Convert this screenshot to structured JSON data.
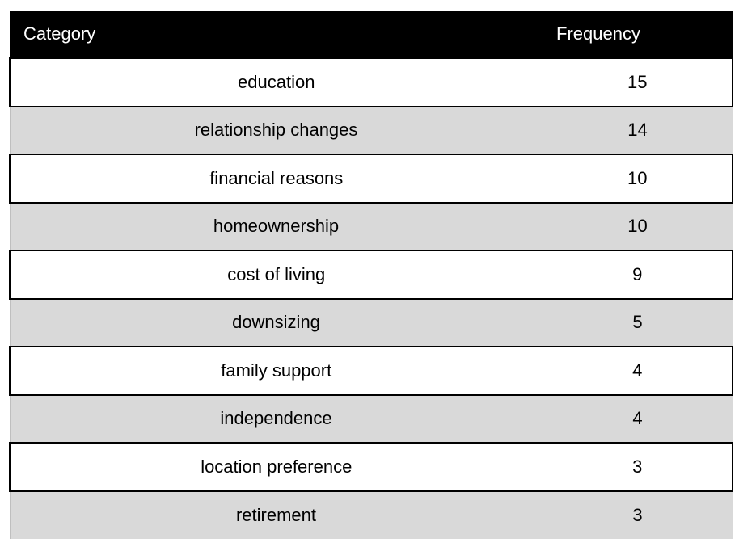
{
  "table": {
    "headers": {
      "category": "Category",
      "frequency": "Frequency"
    },
    "rows": [
      {
        "category": "education",
        "frequency": "15"
      },
      {
        "category": "relationship changes",
        "frequency": "14"
      },
      {
        "category": "financial reasons",
        "frequency": "10"
      },
      {
        "category": "homeownership",
        "frequency": "10"
      },
      {
        "category": "cost of living",
        "frequency": "9"
      },
      {
        "category": "downsizing",
        "frequency": "5"
      },
      {
        "category": "family support",
        "frequency": "4"
      },
      {
        "category": "independence",
        "frequency": "4"
      },
      {
        "category": "location preference",
        "frequency": "3"
      },
      {
        "category": "retirement",
        "frequency": "3"
      }
    ]
  },
  "colors": {
    "header_bg": "#000000",
    "header_text": "#ffffff",
    "row_alt_bg": "#d9d9d9",
    "row_bg": "#ffffff"
  }
}
